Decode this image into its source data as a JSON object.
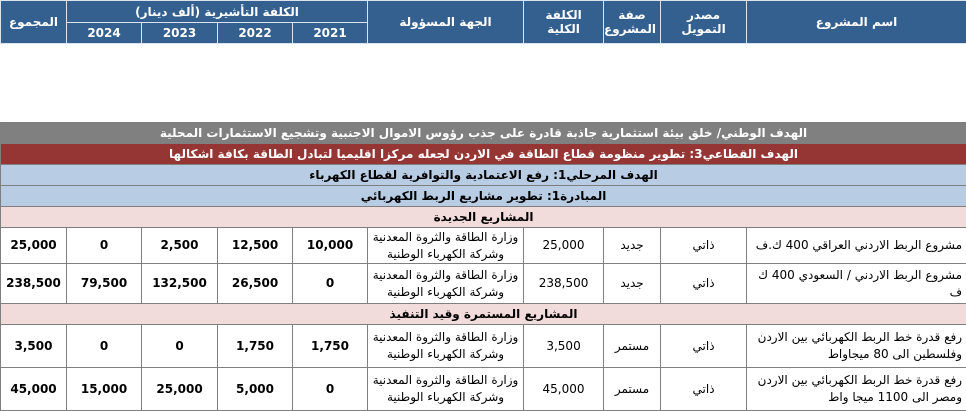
{
  "header": {
    "project_name": "اسم المشروع",
    "funding_source": "مصدر التمويل",
    "project_type": "صفة المشروع",
    "total_cost": "الكلفة الكلية",
    "responsible_entity": "الجهة المسؤولة",
    "indicative_cost": "الكلفة التأشيرية (ألف دينار)",
    "years": [
      "2021",
      "2022",
      "2023",
      "2024"
    ],
    "total": "المجموع"
  },
  "bands": {
    "national_goal": "الهدف الوطني/  خلق بيئة استثمارية جاذبة قادرة على جذب رؤوس الاموال الاجنبية وتشجيع الاستثمارات المحلية",
    "sector_goal": "الهدف القطاعي3: تطوير منظومة قطاع الطاقة في الاردن لجعله مركزا اقليميا لتبادل الطاقة بكافة اشكالها",
    "stage_goal": "الهدف المرحلي1: رفع الاعتمادية والتوافرية لقطاع الكهرباء",
    "initiative": "المبادرة1: تطوير مشاريع الربط الكهربائي",
    "new_projects": "المشاريع الجديدة",
    "ongoing_projects": "المشاريع المستمرة وقيد التنفيذ"
  },
  "rows": [
    {
      "name": "مشروع الربط الاردني العراقي 400 ك.ف",
      "funding": "ذاتي",
      "type": "جديد",
      "cost": "25,000",
      "entity": "وزارة الطاقة والثروة المعدنية وشركة الكهرباء الوطنية",
      "y2021": "10,000",
      "y2022": "12,500",
      "y2023": "2,500",
      "y2024": "0",
      "total": "25,000"
    },
    {
      "name": "مشروع الربط الاردني / السعودي 400 ك ف",
      "funding": "ذاتي",
      "type": "جديد",
      "cost": "238,500",
      "entity": "وزارة الطاقة والثروة المعدنية وشركة الكهرباء الوطنية",
      "y2021": "0",
      "y2022": "26,500",
      "y2023": "132,500",
      "y2024": "79,500",
      "total": "238,500"
    },
    {
      "name": "رفع قدرة خط الربط الكهربائي بين الاردن وفلسطين الى 80 ميجاواط",
      "funding": "ذاتي",
      "type": "مستمر",
      "cost": "3,500",
      "entity": "وزارة الطاقة والثروة المعدنية وشركة الكهرباء الوطنية",
      "y2021": "1,750",
      "y2022": "1,750",
      "y2023": "0",
      "y2024": "0",
      "total": "3,500"
    },
    {
      "name": "رفع قدرة خط الربط الكهربائي بين الاردن ومصر الى 1100 ميجا واط",
      "funding": "ذاتي",
      "type": "مستمر",
      "cost": "45,000",
      "entity": "وزارة الطاقة والثروة المعدنية وشركة الكهرباء الوطنية",
      "y2021": "0",
      "y2022": "5,000",
      "y2023": "25,000",
      "y2024": "15,000",
      "total": "45,000"
    }
  ]
}
